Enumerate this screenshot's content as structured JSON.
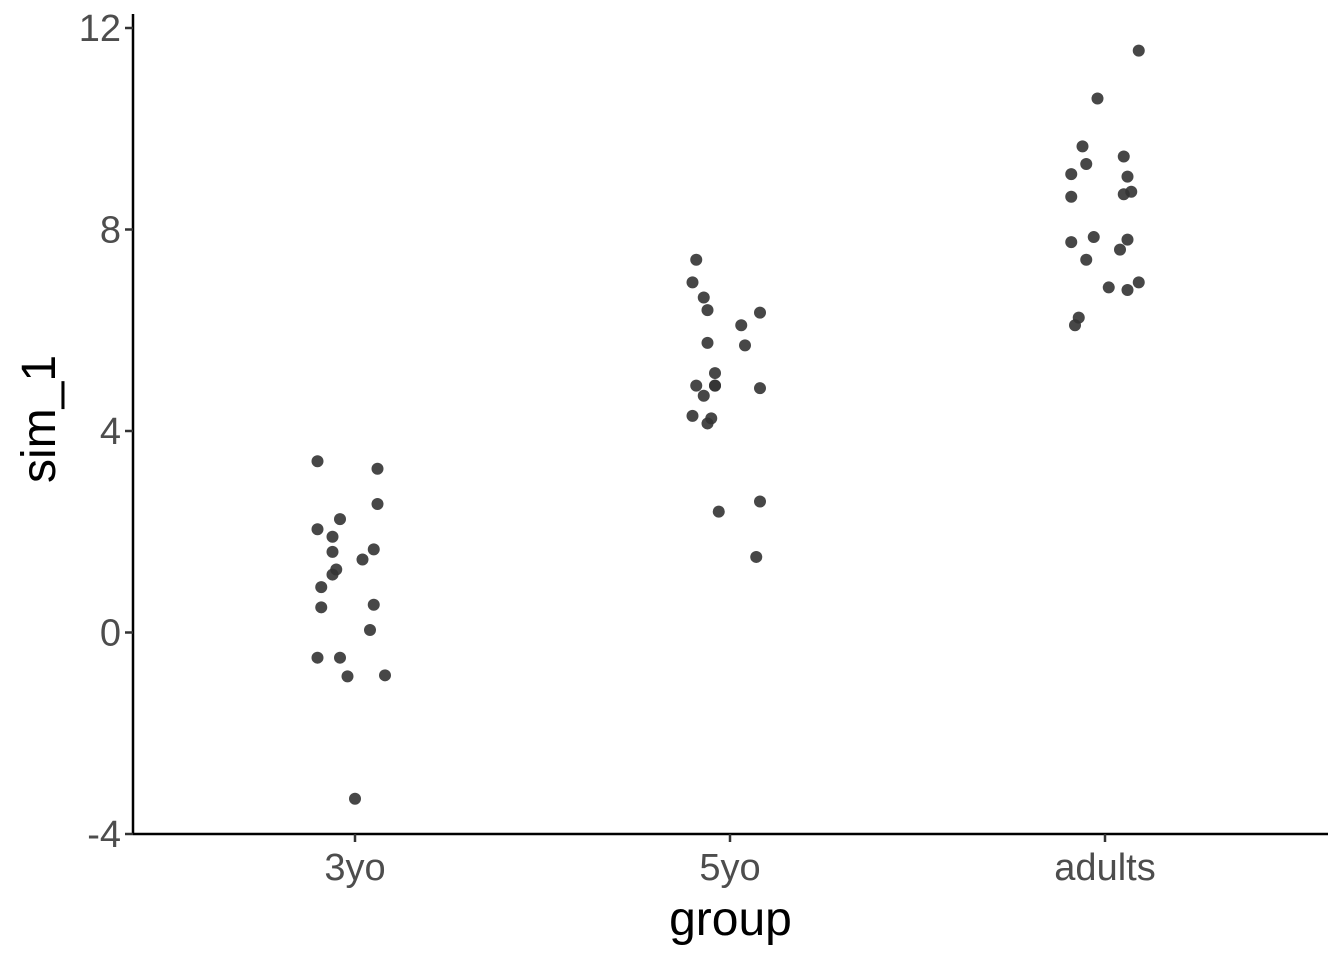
{
  "chart_data": {
    "type": "scatter",
    "title": "",
    "xlabel": "group",
    "ylabel": "sim_1",
    "categories": [
      "3yo",
      "5yo",
      "adults"
    ],
    "ylim": [
      -4,
      12
    ],
    "yticks": [
      -4,
      0,
      4,
      8,
      12
    ],
    "ytick_labels": [
      "-4",
      "0",
      "4",
      "8",
      "12"
    ],
    "grid": false,
    "legend": "none",
    "point_color": "#333333",
    "point_opacity": 0.9,
    "axis_color": "#000000",
    "tick_label_color": "#4d4d4d",
    "series": [
      {
        "category": "3yo",
        "points": [
          {
            "jitter": -0.1,
            "y": 3.4
          },
          {
            "jitter": 0.06,
            "y": 3.25
          },
          {
            "jitter": 0.06,
            "y": 2.55
          },
          {
            "jitter": -0.04,
            "y": 2.25
          },
          {
            "jitter": -0.1,
            "y": 2.05
          },
          {
            "jitter": -0.06,
            "y": 1.9
          },
          {
            "jitter": 0.05,
            "y": 1.65
          },
          {
            "jitter": -0.06,
            "y": 1.6
          },
          {
            "jitter": 0.02,
            "y": 1.45
          },
          {
            "jitter": -0.05,
            "y": 1.25
          },
          {
            "jitter": -0.06,
            "y": 1.15
          },
          {
            "jitter": -0.09,
            "y": 0.9
          },
          {
            "jitter": 0.05,
            "y": 0.55
          },
          {
            "jitter": -0.09,
            "y": 0.5
          },
          {
            "jitter": 0.04,
            "y": 0.05
          },
          {
            "jitter": -0.1,
            "y": -0.5
          },
          {
            "jitter": -0.04,
            "y": -0.5
          },
          {
            "jitter": 0.08,
            "y": -0.85
          },
          {
            "jitter": -0.02,
            "y": -0.87
          },
          {
            "jitter": 0.0,
            "y": -3.3
          }
        ]
      },
      {
        "category": "5yo",
        "points": [
          {
            "jitter": -0.09,
            "y": 7.4
          },
          {
            "jitter": -0.1,
            "y": 6.95
          },
          {
            "jitter": -0.07,
            "y": 6.65
          },
          {
            "jitter": -0.06,
            "y": 6.4
          },
          {
            "jitter": 0.08,
            "y": 6.35
          },
          {
            "jitter": 0.03,
            "y": 6.1
          },
          {
            "jitter": -0.06,
            "y": 5.75
          },
          {
            "jitter": 0.04,
            "y": 5.7
          },
          {
            "jitter": -0.04,
            "y": 5.15
          },
          {
            "jitter": -0.09,
            "y": 4.9
          },
          {
            "jitter": -0.04,
            "y": 4.9
          },
          {
            "jitter": -0.04,
            "y": 4.9
          },
          {
            "jitter": 0.08,
            "y": 4.85
          },
          {
            "jitter": -0.07,
            "y": 4.7
          },
          {
            "jitter": -0.1,
            "y": 4.3
          },
          {
            "jitter": -0.05,
            "y": 4.25
          },
          {
            "jitter": -0.06,
            "y": 4.15
          },
          {
            "jitter": 0.08,
            "y": 2.6
          },
          {
            "jitter": -0.03,
            "y": 2.4
          },
          {
            "jitter": 0.07,
            "y": 1.5
          }
        ]
      },
      {
        "category": "adults",
        "points": [
          {
            "jitter": 0.09,
            "y": 11.55
          },
          {
            "jitter": -0.02,
            "y": 10.6
          },
          {
            "jitter": -0.06,
            "y": 9.65
          },
          {
            "jitter": 0.05,
            "y": 9.45
          },
          {
            "jitter": -0.05,
            "y": 9.3
          },
          {
            "jitter": -0.09,
            "y": 9.1
          },
          {
            "jitter": 0.06,
            "y": 9.05
          },
          {
            "jitter": 0.07,
            "y": 8.75
          },
          {
            "jitter": 0.05,
            "y": 8.7
          },
          {
            "jitter": -0.09,
            "y": 8.65
          },
          {
            "jitter": -0.03,
            "y": 7.85
          },
          {
            "jitter": 0.06,
            "y": 7.8
          },
          {
            "jitter": -0.09,
            "y": 7.75
          },
          {
            "jitter": 0.04,
            "y": 7.6
          },
          {
            "jitter": -0.05,
            "y": 7.4
          },
          {
            "jitter": 0.09,
            "y": 6.95
          },
          {
            "jitter": 0.01,
            "y": 6.85
          },
          {
            "jitter": 0.06,
            "y": 6.8
          },
          {
            "jitter": -0.07,
            "y": 6.25
          },
          {
            "jitter": -0.08,
            "y": 6.1
          }
        ]
      }
    ]
  }
}
